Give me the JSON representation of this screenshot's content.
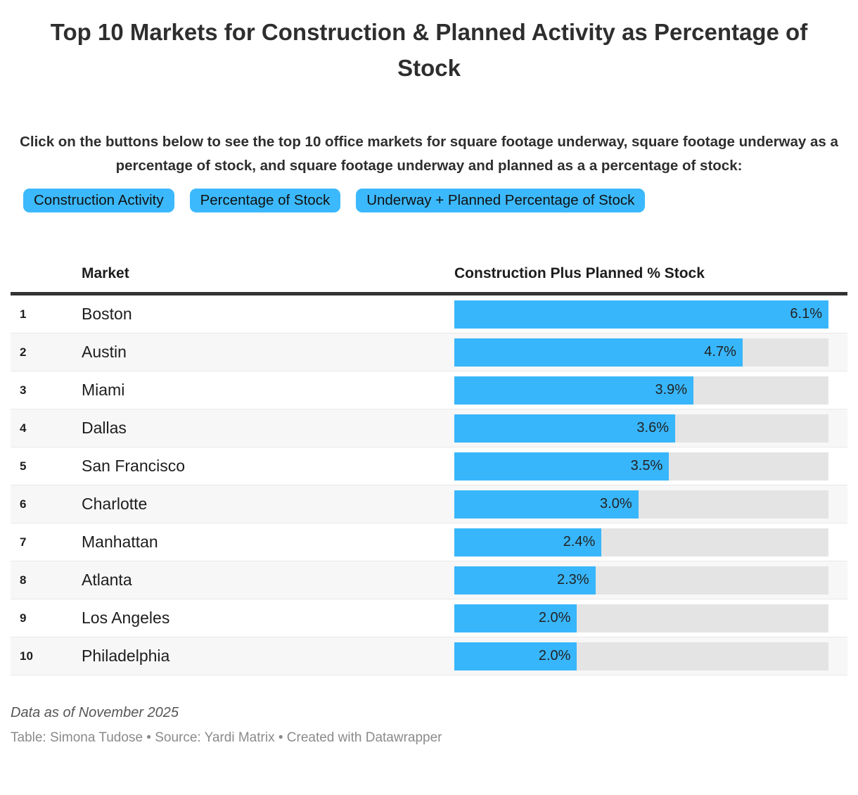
{
  "header": {
    "title": "Top 10 Markets for Construction & Planned Activity as Percentage of Stock",
    "description": "Click on the buttons below to see the top 10 office markets for square footage underway, square footage underway as a percentage of stock, and square footage underway and planned as a a percentage of stock:"
  },
  "buttons": [
    {
      "label": "Construction Activity"
    },
    {
      "label": "Percentage of Stock"
    },
    {
      "label": "Underway + Planned Percentage of Stock"
    }
  ],
  "table": {
    "columns": [
      "Market",
      "Construction Plus Planned % Stock"
    ],
    "rows": [
      {
        "rank": "1",
        "market": "Boston",
        "value": 6.1,
        "label": "6.1%"
      },
      {
        "rank": "2",
        "market": "Austin",
        "value": 4.7,
        "label": "4.7%"
      },
      {
        "rank": "3",
        "market": "Miami",
        "value": 3.9,
        "label": "3.9%"
      },
      {
        "rank": "4",
        "market": "Dallas",
        "value": 3.6,
        "label": "3.6%"
      },
      {
        "rank": "5",
        "market": "San Francisco",
        "value": 3.5,
        "label": "3.5%"
      },
      {
        "rank": "6",
        "market": "Charlotte",
        "value": 3.0,
        "label": "3.0%"
      },
      {
        "rank": "7",
        "market": "Manhattan",
        "value": 2.4,
        "label": "2.4%"
      },
      {
        "rank": "8",
        "market": "Atlanta",
        "value": 2.3,
        "label": "2.3%"
      },
      {
        "rank": "9",
        "market": "Los Angeles",
        "value": 2.0,
        "label": "2.0%"
      },
      {
        "rank": "10",
        "market": "Philadelphia",
        "value": 2.0,
        "label": "2.0%"
      }
    ]
  },
  "chart_data": {
    "type": "bar",
    "orientation": "horizontal",
    "title": "Top 10 Markets for Construction & Planned Activity as Percentage of Stock",
    "categories": [
      "Boston",
      "Austin",
      "Miami",
      "Dallas",
      "San Francisco",
      "Charlotte",
      "Manhattan",
      "Atlanta",
      "Los Angeles",
      "Philadelphia"
    ],
    "values": [
      6.1,
      4.7,
      3.9,
      3.6,
      3.5,
      3.0,
      2.4,
      2.3,
      2.0,
      2.0
    ],
    "value_labels": [
      "6.1%",
      "4.7%",
      "3.9%",
      "3.6%",
      "3.5%",
      "3.0%",
      "2.4%",
      "2.3%",
      "2.0%",
      "2.0%"
    ],
    "xlabel": "Construction Plus Planned % Stock",
    "ylabel": "Market",
    "xlim": [
      0,
      6.1
    ],
    "grid": false,
    "legend": false
  },
  "colors": {
    "accent_blue": "#38b6fb",
    "bar_track": "#e4e4e4",
    "row_alt": "#f7f7f7",
    "row_separator": "#e8e8e8",
    "header_rule": "#333333",
    "text_dark": "#2e2e2e",
    "footer_note": "#565656",
    "footer_attribution": "#8a8a8a"
  },
  "footer": {
    "note": "Data as of November 2025",
    "attribution": "Table: Simona Tudose • Source: Yardi Matrix • Created with Datawrapper"
  }
}
